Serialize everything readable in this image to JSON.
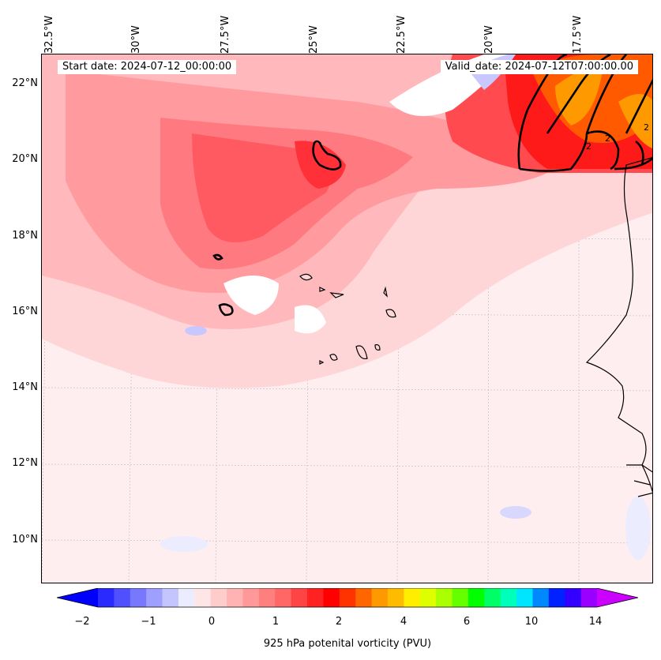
{
  "map": {
    "start_date": "Start date: 2024-07-12_00:00:00",
    "valid_date": "Valid_date: 2024-07-12T07:00:00.00",
    "lon_ticks": [
      "32.5°W",
      "30°W",
      "27.5°W",
      "25°W",
      "22.5°W",
      "20°W",
      "17.5°W"
    ],
    "lat_ticks": [
      "22°N",
      "20°N",
      "18°N",
      "16°N",
      "14°N",
      "12°N",
      "10°N"
    ],
    "contour_labels": [
      "2",
      "2",
      "2"
    ]
  },
  "colorbar": {
    "tick_labels": [
      "−2",
      "−1",
      "0",
      "1",
      "2",
      "4",
      "6",
      "10",
      "14"
    ],
    "label": "925 hPa potenital vorticity (PVU)",
    "colors": [
      "#0000ff",
      "#2a2aff",
      "#5050ff",
      "#7878ff",
      "#9f9fff",
      "#c4c4ff",
      "#ececff",
      "#ffe6e6",
      "#ffcccc",
      "#ffb3b3",
      "#ff9999",
      "#ff7f7f",
      "#ff6666",
      "#ff4444",
      "#ff2222",
      "#ff0000",
      "#ff3300",
      "#ff6600",
      "#ff9900",
      "#ffbb00",
      "#ffee00",
      "#ddff00",
      "#aaff00",
      "#66ff00",
      "#00ff00",
      "#00ff66",
      "#00ffbb",
      "#00e5ff",
      "#0088ff",
      "#0022ff",
      "#3300ff",
      "#9900ff",
      "#cc00ff"
    ]
  }
}
